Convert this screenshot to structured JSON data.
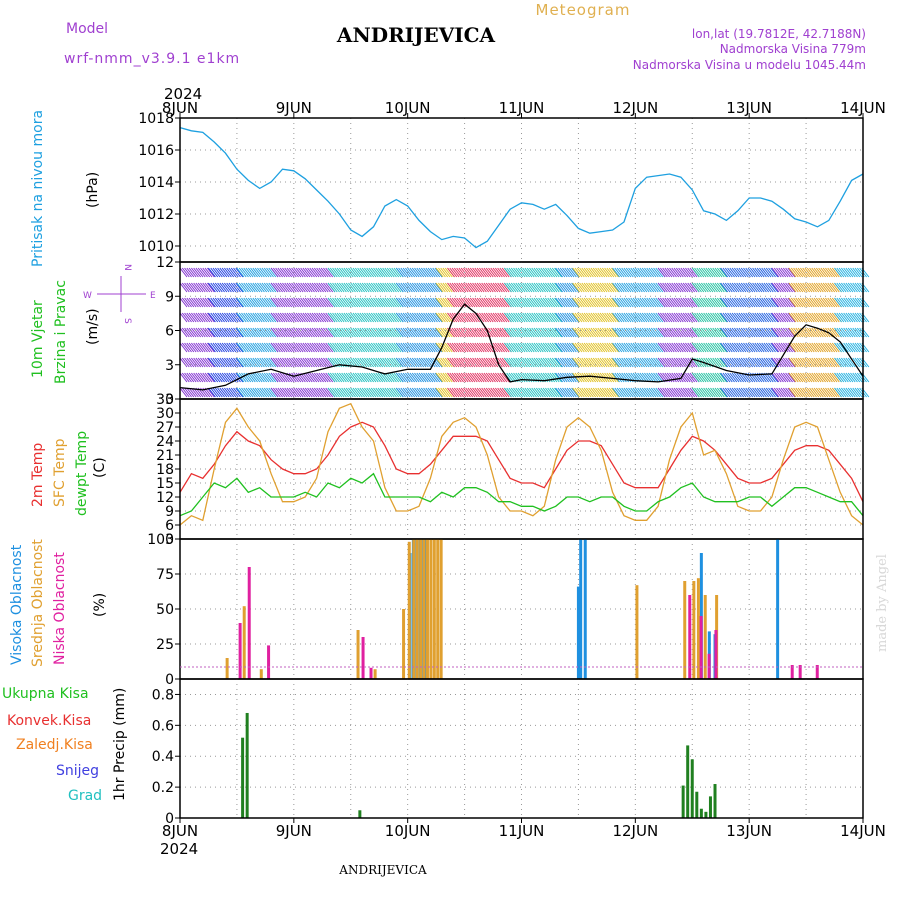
{
  "header": {
    "model_label": "Model",
    "model_name": "wrf-nmm_v3.9.1  e1km",
    "title": "ANDRIJEVICA",
    "chart_name": "Meteogram",
    "lonlat": "lon,lat (19.7812E, 42.7188N)",
    "elevation": "Nadmorska Visina 779m",
    "model_elevation": "Nadmorska Visina u modelu 1045.44m",
    "footer_title": "ANDRIJEVICA",
    "credit": "made by Angel",
    "year_top": "2024",
    "year_bottom": "2024"
  },
  "colors": {
    "pressure": "#1ea0e0",
    "temp2m": "#e83030",
    "sfc_temp": "#e0a030",
    "dewpoint": "#20c020",
    "high_cloud": "#1e90e0",
    "mid_cloud": "#e0a030",
    "low_cloud": "#e020a0",
    "total_precip": "#208020",
    "conv_precip": "#e03030",
    "frozen_precip": "#f08020",
    "snow": "#4040e0",
    "graupel": "#20c0c0",
    "purple": "#a040d0"
  },
  "chart_data": {
    "time_axis": {
      "labels": [
        "8JUN",
        "9JUN",
        "10JUN",
        "11JUN",
        "12JUN",
        "13JUN",
        "14JUN"
      ],
      "start": 8,
      "end": 14
    },
    "panels": [
      {
        "id": "pressure",
        "type": "line",
        "ylabel": "Pritisak na nivou mora",
        "units": "(hPa)",
        "ylim": [
          1009,
          1018
        ],
        "yticks": [
          1010,
          1012,
          1014,
          1016,
          1018
        ],
        "series": [
          {
            "color": "pressure",
            "x": [
              8.0,
              8.1,
              8.2,
              8.3,
              8.4,
              8.5,
              8.6,
              8.7,
              8.8,
              8.9,
              9.0,
              9.1,
              9.2,
              9.3,
              9.4,
              9.5,
              9.6,
              9.7,
              9.8,
              9.9,
              10.0,
              10.1,
              10.2,
              10.3,
              10.4,
              10.5,
              10.6,
              10.7,
              10.8,
              10.9,
              11.0,
              11.1,
              11.2,
              11.3,
              11.4,
              11.5,
              11.6,
              11.7,
              11.8,
              11.9,
              12.0,
              12.1,
              12.2,
              12.3,
              12.4,
              12.5,
              12.6,
              12.7,
              12.8,
              12.9,
              13.0,
              13.1,
              13.2,
              13.3,
              13.4,
              13.5,
              13.6,
              13.7,
              13.8,
              13.9,
              14.0
            ],
            "y": [
              1017.4,
              1017.2,
              1017.1,
              1016.5,
              1015.8,
              1014.8,
              1014.1,
              1013.6,
              1014.0,
              1014.8,
              1014.7,
              1014.2,
              1013.5,
              1012.8,
              1012.0,
              1011.0,
              1010.6,
              1011.2,
              1012.5,
              1012.9,
              1012.5,
              1011.6,
              1010.9,
              1010.4,
              1010.6,
              1010.5,
              1009.9,
              1010.3,
              1011.3,
              1012.3,
              1012.7,
              1012.6,
              1012.3,
              1012.6,
              1011.9,
              1011.1,
              1010.8,
              1010.9,
              1011.0,
              1011.5,
              1013.6,
              1014.3,
              1014.4,
              1014.5,
              1014.3,
              1013.5,
              1012.2,
              1012.0,
              1011.6,
              1012.2,
              1013.0,
              1013.0,
              1012.8,
              1012.3,
              1011.7,
              1011.5,
              1011.2,
              1011.6,
              1012.8,
              1014.1,
              1014.5
            ]
          }
        ]
      },
      {
        "id": "wind",
        "type": "line",
        "ylabel": "10m Vjetar",
        "ylabel2": "Brzina i Pravac",
        "units": "(m/s)",
        "compass": {
          "n": "N",
          "s": "S",
          "e": "E",
          "w": "W"
        },
        "ylim": [
          0,
          12
        ],
        "yticks": [
          0,
          3,
          6,
          9,
          12
        ],
        "series": [
          {
            "name": "wind speed",
            "color": "#000000",
            "x": [
              8.0,
              8.2,
              8.4,
              8.6,
              8.8,
              9.0,
              9.2,
              9.4,
              9.6,
              9.8,
              10.0,
              10.2,
              10.3,
              10.4,
              10.5,
              10.6,
              10.7,
              10.8,
              10.9,
              11.0,
              11.2,
              11.4,
              11.6,
              11.8,
              12.0,
              12.2,
              12.4,
              12.5,
              12.6,
              12.8,
              13.0,
              13.2,
              13.4,
              13.5,
              13.6,
              13.7,
              13.8,
              14.0
            ],
            "y": [
              1.0,
              0.8,
              1.2,
              2.2,
              2.6,
              2.0,
              2.5,
              3.0,
              2.8,
              2.2,
              2.6,
              2.6,
              4.5,
              7.0,
              8.3,
              7.5,
              6.0,
              3.0,
              1.5,
              1.7,
              1.6,
              1.9,
              2.0,
              1.8,
              1.6,
              1.5,
              1.8,
              3.5,
              3.2,
              2.5,
              2.1,
              2.2,
              5.5,
              6.5,
              6.2,
              5.8,
              5.0,
              2.0
            ]
          }
        ]
      },
      {
        "id": "temperature",
        "type": "line",
        "ylabel": "2m Temp",
        "ylabel2": "SFC Temp",
        "ylabel3": "dewpt Temp",
        "units": "(C)",
        "ylim": [
          3,
          33
        ],
        "yticks": [
          3,
          6,
          9,
          12,
          15,
          18,
          21,
          24,
          27,
          30,
          33
        ],
        "series": [
          {
            "name": "2m Temp",
            "color": "temp2m",
            "x": [
              8.0,
              8.1,
              8.2,
              8.3,
              8.4,
              8.5,
              8.6,
              8.7,
              8.8,
              8.9,
              9.0,
              9.1,
              9.2,
              9.3,
              9.4,
              9.5,
              9.6,
              9.7,
              9.8,
              9.9,
              10.0,
              10.1,
              10.2,
              10.3,
              10.4,
              10.5,
              10.6,
              10.7,
              10.8,
              10.9,
              11.0,
              11.1,
              11.2,
              11.3,
              11.4,
              11.5,
              11.6,
              11.7,
              11.8,
              11.9,
              12.0,
              12.1,
              12.2,
              12.3,
              12.4,
              12.5,
              12.6,
              12.7,
              12.8,
              12.9,
              13.0,
              13.1,
              13.2,
              13.3,
              13.4,
              13.5,
              13.6,
              13.7,
              13.8,
              13.9,
              14.0
            ],
            "y": [
              13,
              17,
              16,
              19,
              23,
              26,
              24,
              23,
              20,
              18,
              17,
              17,
              18,
              21,
              25,
              27,
              28,
              27,
              23,
              18,
              17,
              17,
              19,
              22,
              25,
              25,
              25,
              24,
              20,
              16,
              15,
              15,
              14,
              18,
              22,
              24,
              24,
              23,
              19,
              15,
              14,
              14,
              14,
              18,
              22,
              25,
              24,
              22,
              19,
              16,
              15,
              15,
              16,
              19,
              22,
              23,
              23,
              22,
              19,
              16,
              11
            ]
          },
          {
            "name": "SFC Temp",
            "color": "sfc_temp",
            "x": [
              8.0,
              8.1,
              8.2,
              8.3,
              8.4,
              8.5,
              8.6,
              8.7,
              8.8,
              8.9,
              9.0,
              9.1,
              9.2,
              9.3,
              9.4,
              9.5,
              9.6,
              9.7,
              9.8,
              9.9,
              10.0,
              10.1,
              10.2,
              10.3,
              10.4,
              10.5,
              10.6,
              10.7,
              10.8,
              10.9,
              11.0,
              11.1,
              11.2,
              11.3,
              11.4,
              11.5,
              11.6,
              11.7,
              11.8,
              11.9,
              12.0,
              12.1,
              12.2,
              12.3,
              12.4,
              12.5,
              12.6,
              12.7,
              12.8,
              12.9,
              13.0,
              13.1,
              13.2,
              13.3,
              13.4,
              13.5,
              13.6,
              13.7,
              13.8,
              13.9,
              14.0
            ],
            "y": [
              6,
              8,
              7,
              18,
              28,
              31,
              27,
              24,
              17,
              11,
              11,
              12,
              16,
              26,
              31,
              32,
              27,
              24,
              14,
              9,
              9,
              10,
              16,
              25,
              28,
              29,
              27,
              21,
              12,
              9,
              9,
              8,
              10,
              20,
              27,
              29,
              27,
              22,
              13,
              8,
              7,
              7,
              10,
              20,
              27,
              30,
              21,
              22,
              17,
              10,
              9,
              9,
              12,
              20,
              27,
              28,
              27,
              20,
              13,
              8,
              6
            ]
          },
          {
            "name": "dewpt Temp",
            "color": "dewpoint",
            "x": [
              8.0,
              8.1,
              8.2,
              8.3,
              8.4,
              8.5,
              8.6,
              8.7,
              8.8,
              8.9,
              9.0,
              9.1,
              9.2,
              9.3,
              9.4,
              9.5,
              9.6,
              9.7,
              9.8,
              9.9,
              10.0,
              10.1,
              10.2,
              10.3,
              10.4,
              10.5,
              10.6,
              10.7,
              10.8,
              10.9,
              11.0,
              11.1,
              11.2,
              11.3,
              11.4,
              11.5,
              11.6,
              11.7,
              11.8,
              11.9,
              12.0,
              12.1,
              12.2,
              12.3,
              12.4,
              12.5,
              12.6,
              12.7,
              12.8,
              12.9,
              13.0,
              13.1,
              13.2,
              13.3,
              13.4,
              13.5,
              13.6,
              13.7,
              13.8,
              13.9,
              14.0
            ],
            "y": [
              8,
              9,
              12,
              15,
              14,
              16,
              13,
              14,
              12,
              12,
              12,
              13,
              12,
              15,
              14,
              16,
              15,
              17,
              12,
              12,
              12,
              12,
              11,
              13,
              12,
              14,
              14,
              13,
              11,
              11,
              10,
              10,
              9,
              10,
              12,
              12,
              11,
              12,
              12,
              10,
              9,
              9,
              11,
              12,
              14,
              15,
              12,
              11,
              11,
              11,
              12,
              12,
              10,
              12,
              14,
              14,
              13,
              12,
              11,
              11,
              8
            ]
          }
        ]
      },
      {
        "id": "clouds",
        "type": "bar",
        "ylabel": "Visoka Oblacnost",
        "ylabel2": "Srednja Oblacnost",
        "ylabel3": "Niska Oblacnost",
        "units": "(%)",
        "ylim": [
          0,
          100
        ],
        "yticks": [
          0,
          25,
          50,
          75,
          100
        ],
        "series": [
          {
            "name": "Visoka Oblacnost",
            "color": "high_cloud",
            "x": [
              10.02,
              10.05,
              10.08,
              10.11,
              10.14,
              10.17,
              11.5,
              11.52,
              11.56,
              12.58,
              12.65,
              12.7,
              13.25
            ],
            "y": [
              90,
              100,
              100,
              100,
              100,
              100,
              66,
              100,
              100,
              90,
              34,
              32,
              100
            ]
          },
          {
            "name": "Srednja Oblacnost",
            "color": "mid_cloud",
            "x": [
              8.4,
              8.55,
              8.7,
              9.55,
              9.7,
              9.95,
              10.0,
              10.04,
              10.07,
              10.1,
              10.13,
              10.16,
              10.19,
              10.22,
              10.25,
              10.28,
              12.0,
              12.42,
              12.5,
              12.54,
              12.6,
              12.7
            ],
            "y": [
              15,
              52,
              7,
              35,
              7,
              50,
              98,
              100,
              100,
              100,
              100,
              100,
              100,
              100,
              100,
              100,
              67,
              70,
              70,
              72,
              60,
              60
            ]
          },
          {
            "name": "Niska Oblacnost",
            "color": "low_cloud",
            "x": [
              8.5,
              8.58,
              8.75,
              9.58,
              9.65,
              12.45,
              12.55,
              12.62,
              12.68,
              13.35,
              13.42,
              13.57
            ],
            "y": [
              40,
              80,
              24,
              30,
              8,
              60,
              45,
              18,
              35,
              10,
              10,
              10
            ]
          }
        ]
      },
      {
        "id": "precip",
        "type": "bar",
        "ylabel": "1hr Precip (mm)",
        "ylim": [
          0,
          0.9
        ],
        "yticks": [
          0,
          0.2,
          0.4,
          0.6,
          0.8
        ],
        "legend": [
          "Ukupna Kisa",
          "Konvek.Kisa",
          "Zaledj.Kisa",
          "Snijeg",
          "Grad"
        ],
        "series": [
          {
            "name": "Ukupna Kisa",
            "color": "total_precip",
            "x": [
              8.55,
              8.59,
              9.58,
              12.42,
              12.46,
              12.5,
              12.54,
              12.58,
              12.62,
              12.66,
              12.7
            ],
            "y": [
              0.52,
              0.68,
              0.05,
              0.21,
              0.47,
              0.38,
              0.17,
              0.06,
              0.04,
              0.14,
              0.22
            ]
          }
        ]
      }
    ]
  }
}
